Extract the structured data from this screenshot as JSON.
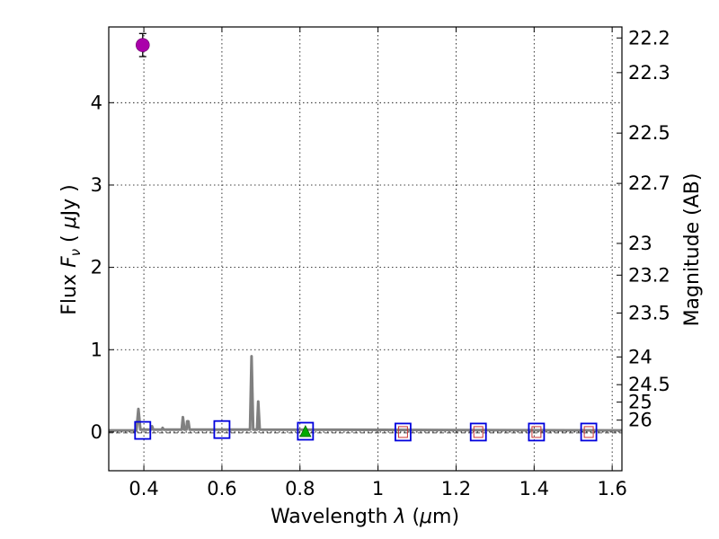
{
  "chart_data": {
    "type": "scatter",
    "title": "",
    "xlabel": {
      "prefix": "Wavelength  ",
      "symbol": "λ",
      "unit_open": " (",
      "unit_mu": "μ",
      "unit_rest": "m)"
    },
    "ylabel": {
      "prefix": "Flux  ",
      "symbol": "F",
      "sub": "ν",
      "unit_open": "  ( ",
      "unit_mu": "μ",
      "unit_rest": "Jy )"
    },
    "y2label": "Magnitude (AB)",
    "xlim": [
      0.31,
      1.625
    ],
    "ylim": [
      -0.47,
      4.92
    ],
    "x_ticks": [
      0.4,
      0.6,
      0.8,
      1.0,
      1.2,
      1.4,
      1.6
    ],
    "x_tick_labels": [
      "0.4",
      "0.6",
      "0.8",
      "1",
      "1.2",
      "1.4",
      "1.6"
    ],
    "y_ticks": [
      0,
      1,
      2,
      3,
      4
    ],
    "y_tick_labels": [
      "0",
      "1",
      "2",
      "3",
      "4"
    ],
    "y2_ticks": [
      22.2,
      22.3,
      22.5,
      22.7,
      23,
      23.2,
      23.5,
      24,
      24.5,
      25,
      26
    ],
    "y2_tick_labels": [
      "22.2",
      "22.3",
      "22.5",
      "22.7",
      "23",
      "23.2",
      "23.5",
      "24",
      "24.5",
      "25",
      "26"
    ],
    "grid": true,
    "series": [
      {
        "name": "observed photometry",
        "kind": "point-with-errorbar",
        "color": "#aa00aa",
        "points": [
          {
            "x": 0.397,
            "y": 4.7,
            "yerr": 0.14
          }
        ]
      },
      {
        "name": "model photometry",
        "kind": "open-square",
        "edge_color": "#0000dd",
        "points": [
          {
            "x": 0.397,
            "y": 0.02
          },
          {
            "x": 0.6,
            "y": 0.03
          },
          {
            "x": 0.814,
            "y": 0.01
          },
          {
            "x": 1.064,
            "y": 0.0
          },
          {
            "x": 1.257,
            "y": 0.0
          },
          {
            "x": 1.406,
            "y": 0.0
          },
          {
            "x": 1.54,
            "y": 0.0
          }
        ]
      },
      {
        "name": "photometry limits",
        "kind": "small-square",
        "color": "#cc3333",
        "points": [
          {
            "x": 1.064,
            "y": 0.0
          },
          {
            "x": 1.257,
            "y": 0.0
          },
          {
            "x": 1.406,
            "y": 0.0
          },
          {
            "x": 1.54,
            "y": 0.0
          }
        ]
      },
      {
        "name": "detection",
        "kind": "triangle",
        "color": "#00aa00",
        "points": [
          {
            "x": 0.814,
            "y": 0.0
          }
        ]
      },
      {
        "name": "model spectrum",
        "kind": "line",
        "color": "#808080",
        "points": [
          {
            "x": 0.31,
            "y": 0.02
          },
          {
            "x": 0.381,
            "y": 0.02
          },
          {
            "x": 0.386,
            "y": 0.28
          },
          {
            "x": 0.391,
            "y": 0.03
          },
          {
            "x": 0.418,
            "y": 0.03
          },
          {
            "x": 0.421,
            "y": 0.07
          },
          {
            "x": 0.424,
            "y": 0.03
          },
          {
            "x": 0.446,
            "y": 0.03
          },
          {
            "x": 0.448,
            "y": 0.05
          },
          {
            "x": 0.451,
            "y": 0.03
          },
          {
            "x": 0.497,
            "y": 0.03
          },
          {
            "x": 0.5,
            "y": 0.18
          },
          {
            "x": 0.504,
            "y": 0.03
          },
          {
            "x": 0.509,
            "y": 0.03
          },
          {
            "x": 0.511,
            "y": 0.13
          },
          {
            "x": 0.514,
            "y": 0.13
          },
          {
            "x": 0.517,
            "y": 0.03
          },
          {
            "x": 0.672,
            "y": 0.03
          },
          {
            "x": 0.676,
            "y": 0.92
          },
          {
            "x": 0.68,
            "y": 0.03
          },
          {
            "x": 0.69,
            "y": 0.03
          },
          {
            "x": 0.693,
            "y": 0.37
          },
          {
            "x": 0.697,
            "y": 0.03
          },
          {
            "x": 1.625,
            "y": 0.02
          }
        ]
      }
    ]
  }
}
